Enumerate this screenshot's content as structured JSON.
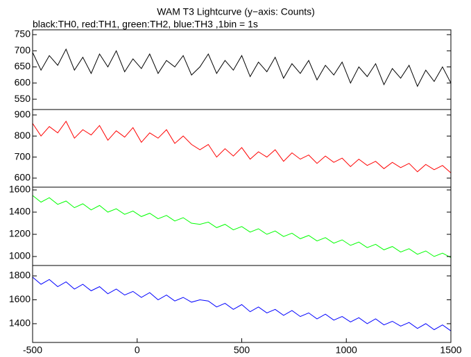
{
  "chart_data": [
    {
      "type": "line",
      "title": "WAM T3 Lightcurve (y−axis: Counts)",
      "subtitle": "black:TH0, red:TH1, green:TH2, blue:TH3 ,1bin = 1s",
      "x": [
        -500,
        -460,
        -420,
        -380,
        -340,
        -300,
        -260,
        -220,
        -180,
        -140,
        -100,
        -60,
        -20,
        20,
        60,
        100,
        140,
        180,
        220,
        260,
        300,
        340,
        380,
        420,
        460,
        500,
        540,
        580,
        620,
        660,
        700,
        740,
        780,
        820,
        860,
        900,
        940,
        980,
        1020,
        1060,
        1100,
        1140,
        1180,
        1220,
        1260,
        1300,
        1340,
        1380,
        1420,
        1460,
        1500
      ],
      "series": [
        {
          "color": "#000000",
          "values": [
            695,
            640,
            685,
            655,
            705,
            640,
            680,
            630,
            690,
            650,
            700,
            635,
            675,
            645,
            690,
            630,
            670,
            650,
            685,
            625,
            650,
            690,
            630,
            670,
            640,
            685,
            620,
            665,
            635,
            680,
            615,
            660,
            630,
            670,
            610,
            655,
            625,
            665,
            600,
            650,
            620,
            660,
            595,
            645,
            615,
            655,
            590,
            640,
            605,
            650,
            600
          ]
        }
      ],
      "xlim": [
        -500,
        1500
      ],
      "ylim": [
        518,
        765
      ],
      "yticks": [
        550,
        600,
        650,
        700,
        750
      ]
    },
    {
      "type": "line",
      "x": [
        -500,
        -460,
        -420,
        -380,
        -340,
        -300,
        -260,
        -220,
        -180,
        -140,
        -100,
        -60,
        -20,
        20,
        60,
        100,
        140,
        180,
        220,
        260,
        300,
        340,
        380,
        420,
        460,
        500,
        540,
        580,
        620,
        660,
        700,
        740,
        780,
        820,
        860,
        900,
        940,
        980,
        1020,
        1060,
        1100,
        1140,
        1180,
        1220,
        1260,
        1300,
        1340,
        1380,
        1420,
        1460,
        1500
      ],
      "series": [
        {
          "color": "#ff0000",
          "values": [
            860,
            800,
            845,
            815,
            870,
            790,
            830,
            805,
            850,
            780,
            825,
            795,
            840,
            770,
            815,
            790,
            830,
            765,
            800,
            760,
            735,
            760,
            700,
            740,
            705,
            745,
            690,
            725,
            700,
            735,
            680,
            720,
            690,
            710,
            670,
            705,
            675,
            695,
            655,
            690,
            660,
            680,
            645,
            675,
            650,
            670,
            630,
            665,
            640,
            660,
            625
          ]
        }
      ],
      "xlim": [
        -500,
        1500
      ],
      "ylim": [
        557,
        926
      ],
      "yticks": [
        600,
        700,
        800,
        900
      ]
    },
    {
      "type": "line",
      "x": [
        -500,
        -460,
        -420,
        -380,
        -340,
        -300,
        -260,
        -220,
        -180,
        -140,
        -100,
        -60,
        -20,
        20,
        60,
        100,
        140,
        180,
        220,
        260,
        300,
        340,
        380,
        420,
        460,
        500,
        540,
        580,
        620,
        660,
        700,
        740,
        780,
        820,
        860,
        900,
        940,
        980,
        1020,
        1060,
        1100,
        1140,
        1180,
        1220,
        1260,
        1300,
        1340,
        1380,
        1420,
        1460,
        1500
      ],
      "series": [
        {
          "color": "#00ff00",
          "values": [
            1550,
            1490,
            1530,
            1470,
            1500,
            1440,
            1475,
            1420,
            1460,
            1400,
            1430,
            1380,
            1410,
            1360,
            1390,
            1340,
            1370,
            1320,
            1350,
            1300,
            1290,
            1310,
            1260,
            1290,
            1240,
            1270,
            1220,
            1250,
            1200,
            1230,
            1180,
            1210,
            1160,
            1190,
            1140,
            1170,
            1120,
            1150,
            1100,
            1130,
            1080,
            1110,
            1060,
            1090,
            1040,
            1070,
            1020,
            1050,
            1000,
            1030,
            990
          ]
        }
      ],
      "xlim": [
        -500,
        1500
      ],
      "ylim": [
        919,
        1625
      ],
      "yticks": [
        1000,
        1200,
        1400,
        1600
      ]
    },
    {
      "type": "line",
      "x": [
        -500,
        -460,
        -420,
        -380,
        -340,
        -300,
        -260,
        -220,
        -180,
        -140,
        -100,
        -60,
        -20,
        20,
        60,
        100,
        140,
        180,
        220,
        260,
        300,
        340,
        380,
        420,
        460,
        500,
        540,
        580,
        620,
        660,
        700,
        740,
        780,
        820,
        860,
        900,
        940,
        980,
        1020,
        1060,
        1100,
        1140,
        1180,
        1220,
        1260,
        1300,
        1340,
        1380,
        1420,
        1460,
        1500
      ],
      "series": [
        {
          "color": "#0000ff",
          "values": [
            1790,
            1730,
            1770,
            1710,
            1750,
            1690,
            1730,
            1675,
            1710,
            1650,
            1690,
            1640,
            1670,
            1620,
            1660,
            1600,
            1640,
            1590,
            1620,
            1580,
            1600,
            1590,
            1540,
            1570,
            1520,
            1560,
            1500,
            1540,
            1490,
            1520,
            1470,
            1510,
            1460,
            1490,
            1440,
            1480,
            1430,
            1460,
            1415,
            1450,
            1400,
            1440,
            1390,
            1420,
            1380,
            1410,
            1360,
            1400,
            1350,
            1390,
            1340
          ]
        }
      ],
      "xlim": [
        -500,
        1500
      ],
      "ylim": [
        1243,
        1887
      ],
      "yticks": [
        1400,
        1600,
        1800
      ],
      "xticks": [
        -500,
        0,
        500,
        1000,
        1500
      ]
    }
  ]
}
